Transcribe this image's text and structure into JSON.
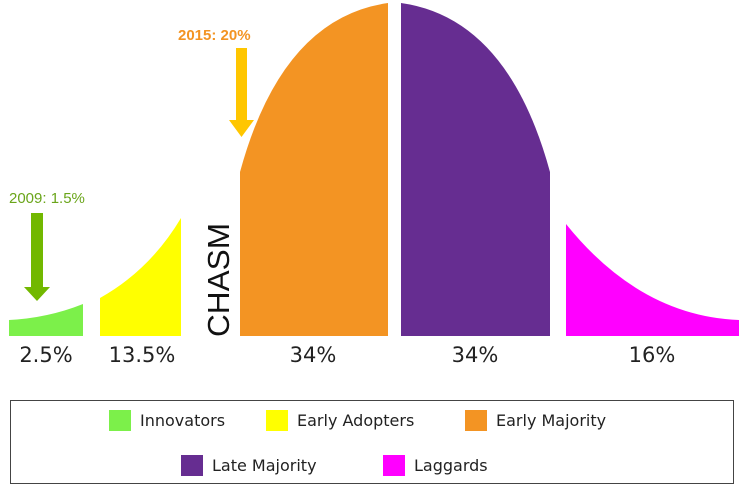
{
  "colors": {
    "innovators": "#7cf04a",
    "early_adopters": "#ffff00",
    "early_majority": "#f39423",
    "late_majority": "#662d91",
    "laggards": "#ff00ff",
    "arrow_2009": "#72b800",
    "arrow_2015": "#ffc600",
    "annotation_2009": "#6aa51a",
    "annotation_2015": "#f39423"
  },
  "segments": [
    {
      "key": "innovators",
      "label": "Innovators",
      "percent": "2.5%"
    },
    {
      "key": "early_adopters",
      "label": "Early Adopters",
      "percent": "13.5%"
    },
    {
      "key": "early_majority",
      "label": "Early Majority",
      "percent": "34%"
    },
    {
      "key": "late_majority",
      "label": "Late Majority",
      "percent": "34%"
    },
    {
      "key": "laggards",
      "label": "Laggards",
      "percent": "16%"
    }
  ],
  "chasm_label": "CHASM",
  "annotations": {
    "y2009": "2009: 1.5%",
    "y2015": "2015: 20%"
  }
}
